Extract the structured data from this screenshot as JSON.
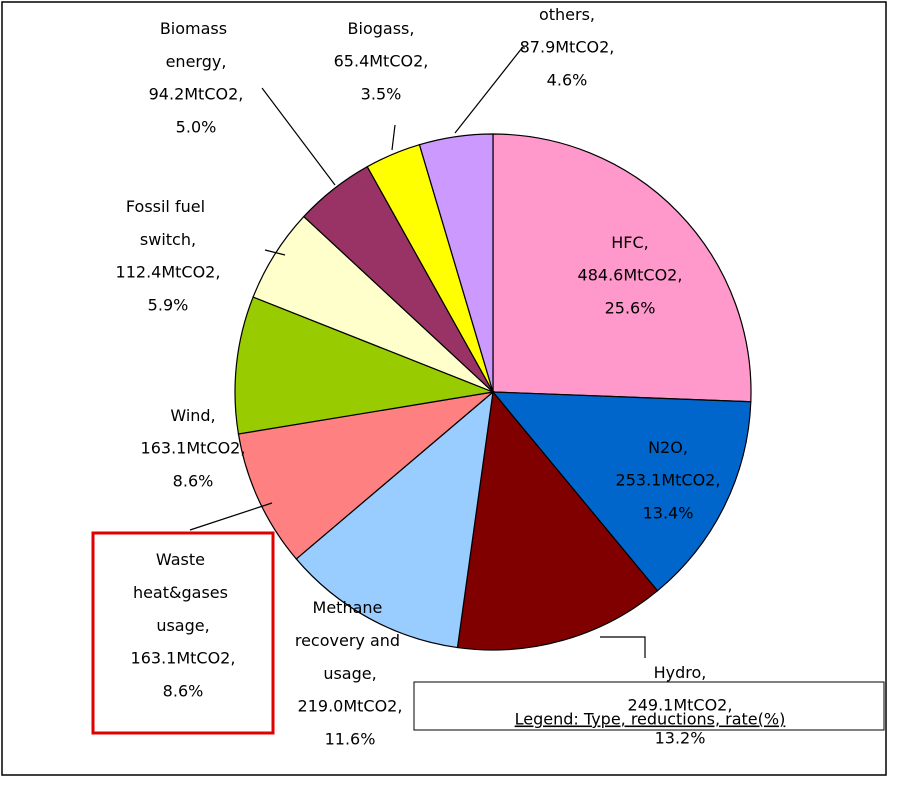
{
  "chart_data": {
    "type": "pie",
    "categories": [
      "HFC,",
      "N2O,",
      "Hydro,",
      "Methane recovery and usage,",
      "Waste heat&gases usage,",
      "Wind,",
      "Fossil fuel switch,",
      "Biomass energy,",
      "Biogass,",
      "others,"
    ],
    "values": [
      25.6,
      13.4,
      13.2,
      11.6,
      8.6,
      8.6,
      5.9,
      5.0,
      3.5,
      4.6
    ],
    "value_labels": [
      "25.6%",
      "13.4%",
      "13.2%",
      "11.6%",
      "8.6%",
      "8.6%",
      "5.9%",
      "5.0%",
      "3.5%",
      "4.6%"
    ],
    "reductions": [
      484.6,
      253.1,
      249.1,
      219.0,
      163.1,
      163.1,
      112.4,
      94.2,
      65.4,
      87.9
    ],
    "reduction_labels": [
      "484.6MtCO2,",
      "253.1MtCO2,",
      "249.1MtCO2,",
      "219.0MtCO2,",
      "163.1MtCO2,",
      "163.1MtCO2,",
      "112.4MtCO2,",
      "94.2MtCO2,",
      "65.4MtCO2,",
      "87.9MtCO2,"
    ],
    "colors": [
      "#ff99cc",
      "#0066cc",
      "#800000",
      "#99ccff",
      "#ff8080",
      "#99cc00",
      "#ffffcc",
      "#993366",
      "#ffff00",
      "#cc99ff"
    ],
    "note": "Legend: Type, reductions, rate(%)"
  }
}
